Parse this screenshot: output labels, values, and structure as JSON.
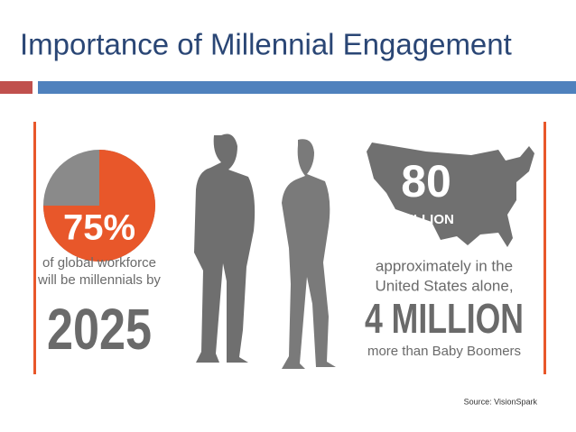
{
  "title": "Importance of Millennial Engagement",
  "left": {
    "pie": {
      "value": 75,
      "value_label": "75%",
      "color": "#e8572a",
      "rest_color": "#8a8a8a"
    },
    "line1": "of global workforce",
    "line2": "will be millennials by",
    "year": "2025"
  },
  "right": {
    "big": "80",
    "unit": "MILLION",
    "line1": "approximately in the",
    "line2": "United States alone,",
    "big2": "4 MILLION",
    "line3": "more than Baby Boomers"
  },
  "source": "Source: VisionSpark"
}
